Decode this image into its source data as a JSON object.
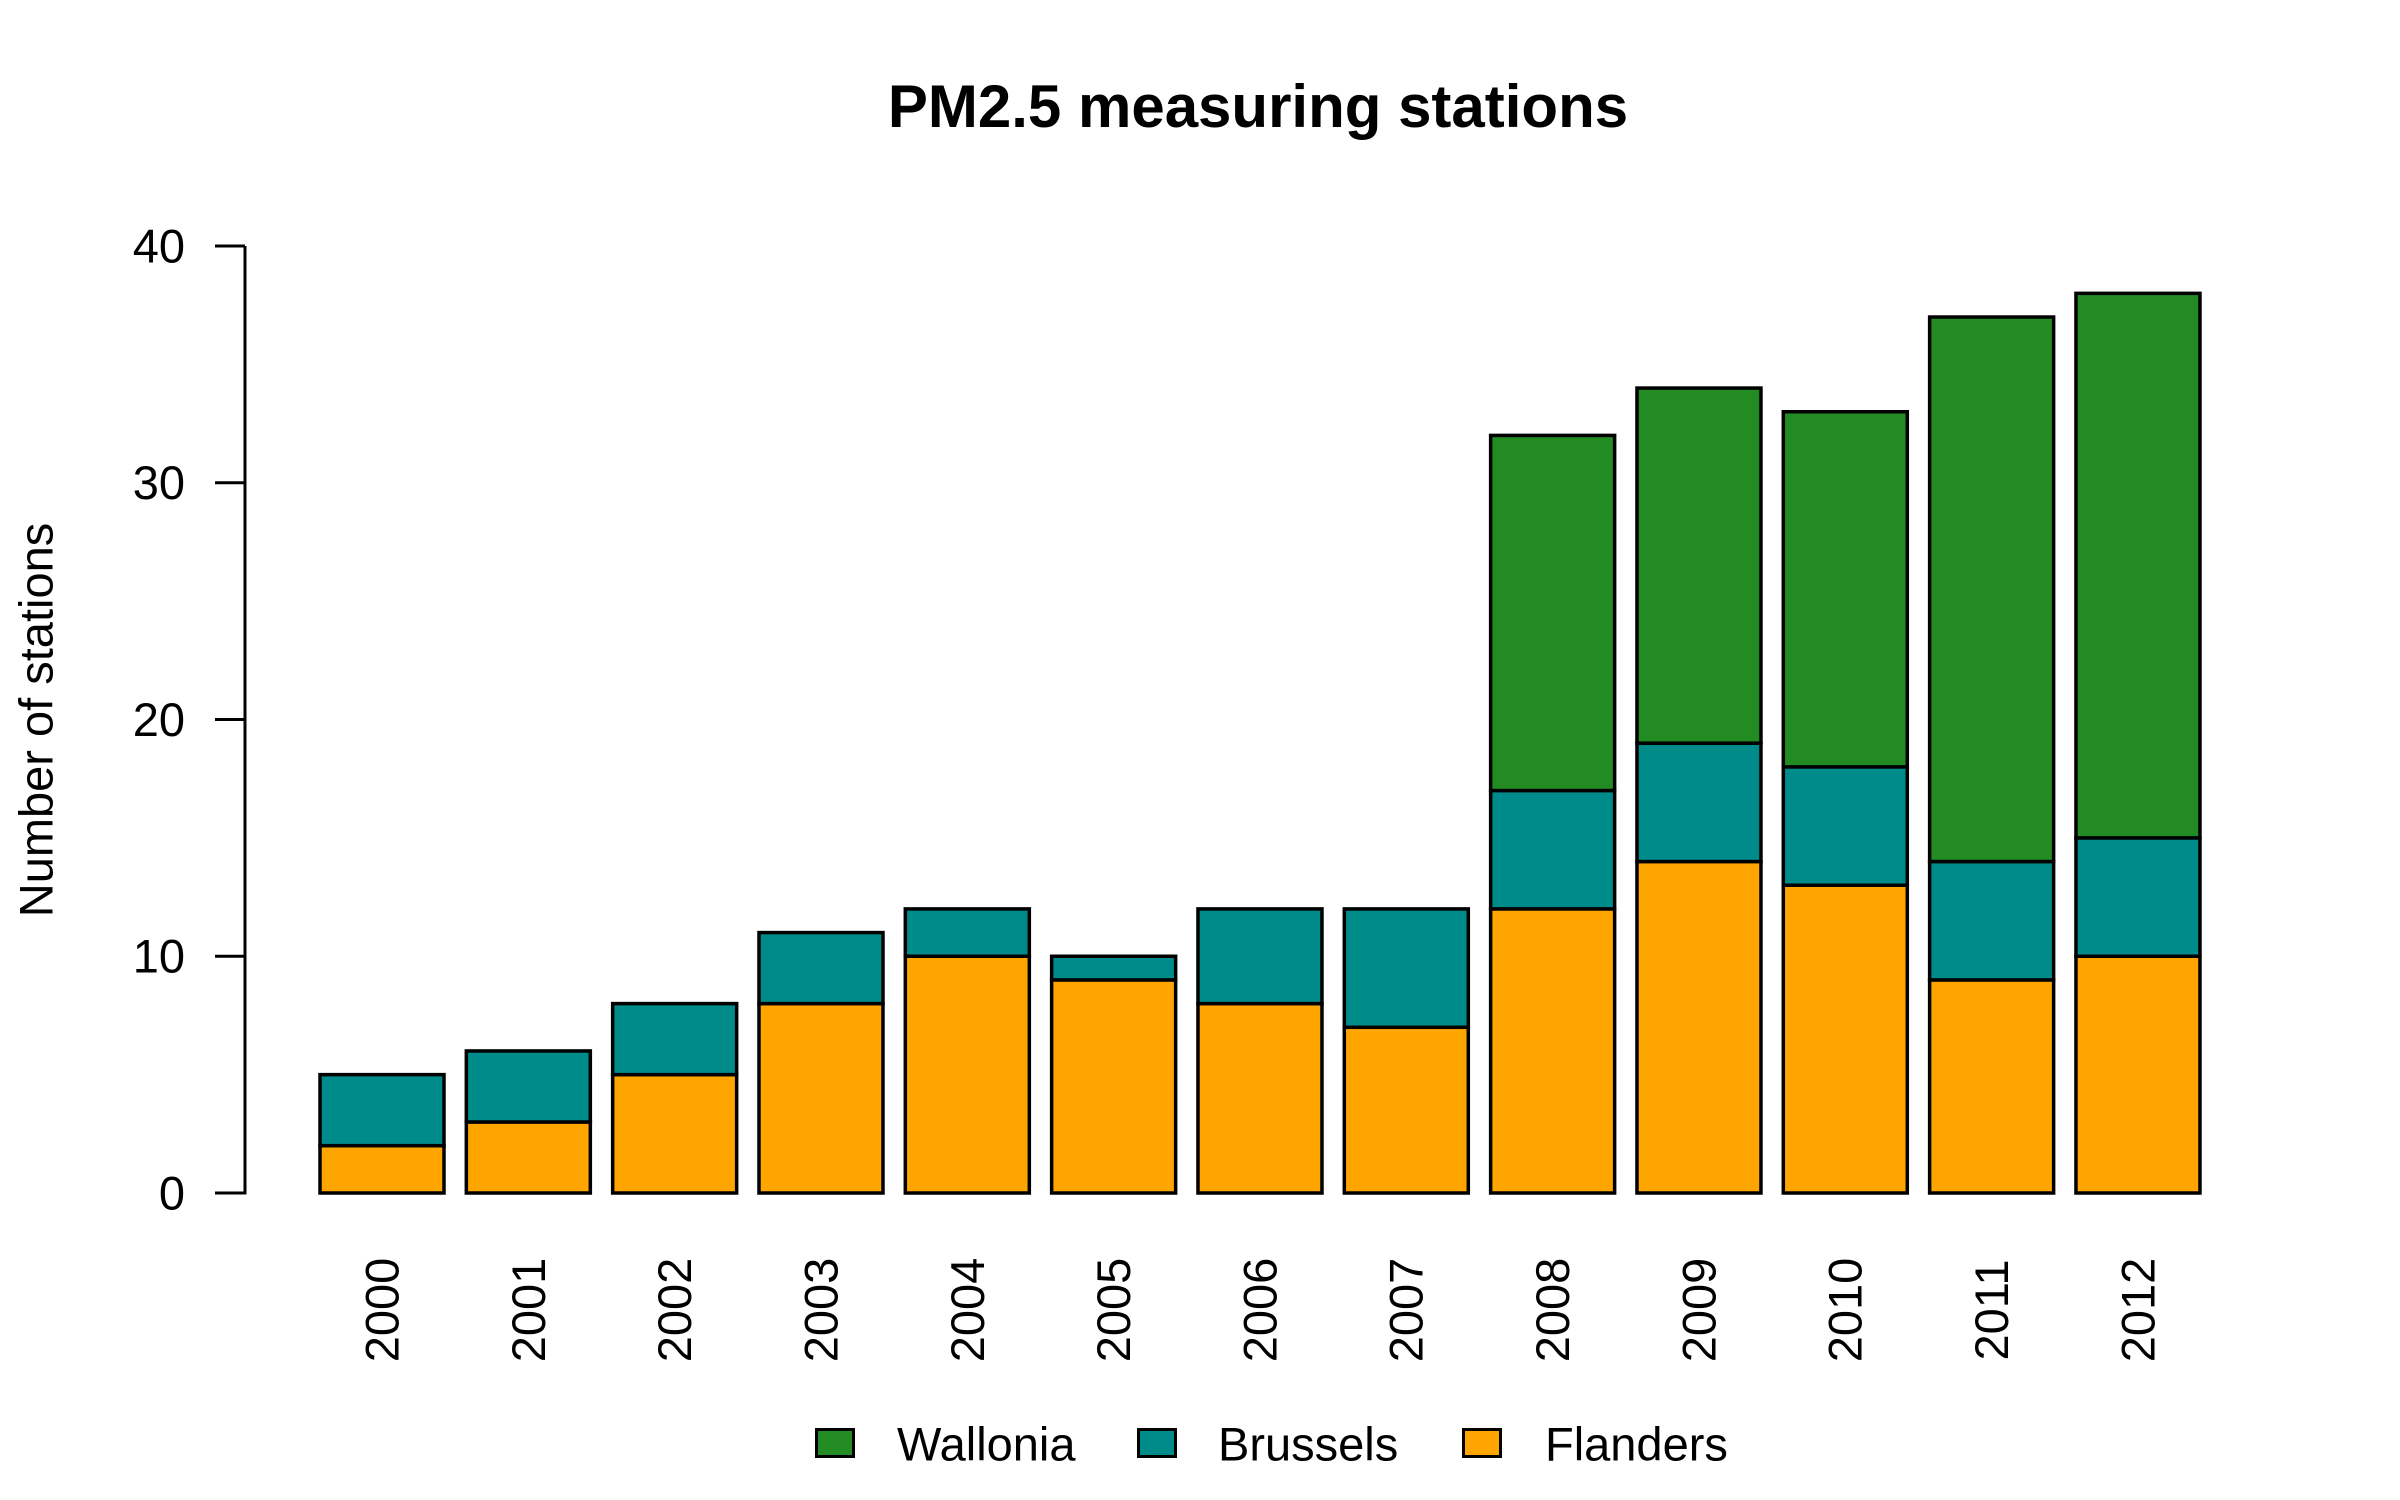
{
  "chart_data": {
    "type": "bar",
    "stacked": true,
    "title": "PM2.5 measuring stations",
    "xlabel": "",
    "ylabel": "Number of stations",
    "ylim": [
      0,
      40
    ],
    "yticks": [
      0,
      10,
      20,
      30,
      40
    ],
    "grid": false,
    "categories": [
      "2000",
      "2001",
      "2002",
      "2003",
      "2004",
      "2005",
      "2006",
      "2007",
      "2008",
      "2009",
      "2010",
      "2011",
      "2012"
    ],
    "series": [
      {
        "name": "Flanders",
        "color": "#FFA500",
        "values": [
          2,
          3,
          5,
          8,
          10,
          9,
          8,
          7,
          12,
          14,
          13,
          9,
          10
        ]
      },
      {
        "name": "Brussels",
        "color": "#008B8B",
        "values": [
          3,
          3,
          3,
          3,
          2,
          1,
          4,
          5,
          5,
          5,
          5,
          5,
          5
        ]
      },
      {
        "name": "Wallonia",
        "color": "#228B22",
        "values": [
          0,
          0,
          0,
          0,
          0,
          0,
          0,
          0,
          15,
          15,
          15,
          23,
          23
        ]
      }
    ],
    "totals": [
      5,
      6,
      8,
      11,
      12,
      10,
      12,
      12,
      32,
      34,
      33,
      37,
      38
    ],
    "bar_border_color": "#000000",
    "legend": {
      "position": "bottom",
      "items": [
        {
          "label": "Wallonia",
          "color": "#228B22"
        },
        {
          "label": "Brussels",
          "color": "#008B8B"
        },
        {
          "label": "Flanders",
          "color": "#FFA500"
        }
      ]
    }
  }
}
